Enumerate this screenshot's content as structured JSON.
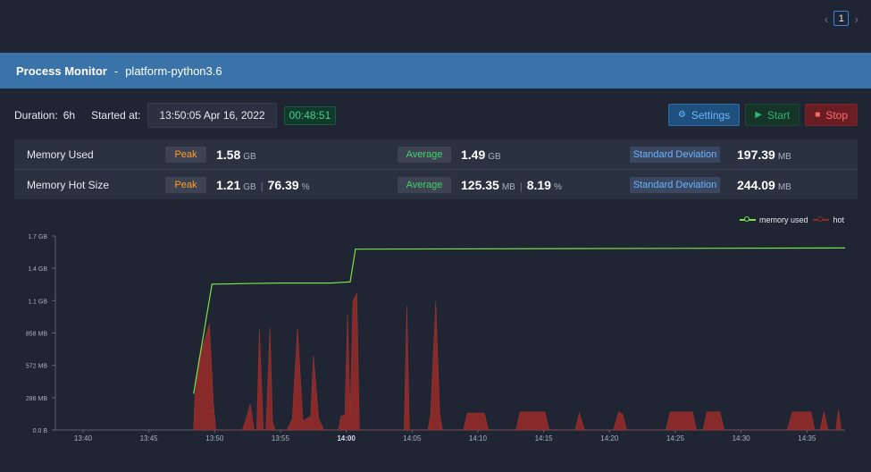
{
  "pager": {
    "prev": "‹",
    "current": "1",
    "next": "›"
  },
  "header": {
    "title": "Process Monitor",
    "separator": "-",
    "process": "platform-python3.6"
  },
  "info": {
    "duration_label": "Duration:",
    "duration_value": "6h",
    "started_label": "Started at:",
    "started_value": "13:50:05 Apr 16, 2022",
    "elapsed": "00:48:51"
  },
  "buttons": {
    "settings": "Settings",
    "start": "Start",
    "stop": "Stop"
  },
  "stats": {
    "rows": [
      {
        "name": "Memory Used",
        "peak_label": "Peak",
        "peak": "1.58",
        "peak_unit": "GB",
        "avg_label": "Average",
        "avg": "1.49",
        "avg_unit": "GB",
        "std_label": "Standard Deviation",
        "std": "197.39",
        "std_unit": "MB"
      },
      {
        "name": "Memory Hot Size",
        "peak_label": "Peak",
        "peak": "1.21",
        "peak_unit": "GB",
        "peak_pct": "76.39",
        "pct_unit": "%",
        "avg_label": "Average",
        "avg": "125.35",
        "avg_unit": "MB",
        "avg_pct": "8.19",
        "avg_pct_unit": "%",
        "std_label": "Standard Deviation",
        "std": "244.09",
        "std_unit": "MB"
      }
    ]
  },
  "colors": {
    "memory_used": "#7ce24a",
    "hot": "#8e2a2a",
    "accent": "#3a73a8"
  },
  "chart_data": {
    "type": "line",
    "legend": [
      "memory used",
      "hot"
    ],
    "legend_position": "top-right",
    "y_ticks": [
      "0.0 B",
      "286 MB",
      "572 MB",
      "858 MB",
      "1.1 GB",
      "1.4 GB",
      "1.7 GB"
    ],
    "y_range_mb": [
      0,
      1716
    ],
    "x_ticks": [
      "13:40",
      "13:45",
      "13:50",
      "13:55",
      "14:00",
      "14:05",
      "14:10",
      "14:15",
      "14:20",
      "14:25",
      "14:30",
      "14:35"
    ],
    "x_bold_tick": "14:00",
    "x_range_min": [
      0,
      60
    ],
    "grid": false,
    "series": [
      {
        "name": "memory used",
        "points_min_mb": [
          [
            10.5,
            320
          ],
          [
            11.9,
            1290
          ],
          [
            14.5,
            1295
          ],
          [
            17,
            1300
          ],
          [
            21,
            1300
          ],
          [
            22.4,
            1310
          ],
          [
            22.8,
            1600
          ],
          [
            60,
            1610
          ]
        ]
      },
      {
        "name": "hot",
        "points_min_mb": [
          [
            10.5,
            0
          ],
          [
            10.6,
            300
          ],
          [
            10.9,
            630
          ],
          [
            11.3,
            780
          ],
          [
            11.7,
            940
          ],
          [
            12,
            240
          ],
          [
            12.2,
            0
          ],
          [
            14.2,
            0
          ],
          [
            14.5,
            100
          ],
          [
            14.8,
            230
          ],
          [
            15.1,
            0
          ],
          [
            15.3,
            0
          ],
          [
            15.5,
            890
          ],
          [
            15.8,
            0
          ],
          [
            16,
            0
          ],
          [
            16.3,
            910
          ],
          [
            16.5,
            70
          ],
          [
            16.7,
            0
          ],
          [
            17.6,
            0
          ],
          [
            18,
            100
          ],
          [
            18.4,
            900
          ],
          [
            18.8,
            80
          ],
          [
            19.4,
            120
          ],
          [
            19.6,
            660
          ],
          [
            20,
            100
          ],
          [
            20.4,
            0
          ],
          [
            21.5,
            0
          ],
          [
            21.7,
            120
          ],
          [
            22,
            130
          ],
          [
            22.2,
            1020
          ],
          [
            22.4,
            130
          ],
          [
            22.6,
            1140
          ],
          [
            22.9,
            1210
          ],
          [
            23.1,
            0
          ],
          [
            26.5,
            0
          ],
          [
            26.7,
            1100
          ],
          [
            26.9,
            0
          ],
          [
            28.3,
            0
          ],
          [
            28.5,
            130
          ],
          [
            28.9,
            1140
          ],
          [
            29.2,
            150
          ],
          [
            29.4,
            0
          ],
          [
            31,
            0
          ],
          [
            31.3,
            150
          ],
          [
            32.6,
            150
          ],
          [
            32.9,
            0
          ],
          [
            35,
            0
          ],
          [
            35.3,
            160
          ],
          [
            37.2,
            160
          ],
          [
            37.5,
            0
          ],
          [
            39.5,
            0
          ],
          [
            39.8,
            150
          ],
          [
            40.2,
            0
          ],
          [
            42.4,
            0
          ],
          [
            42.8,
            160
          ],
          [
            43.1,
            140
          ],
          [
            43.4,
            0
          ],
          [
            46.4,
            0
          ],
          [
            46.7,
            160
          ],
          [
            48.4,
            160
          ],
          [
            48.7,
            0
          ],
          [
            49.2,
            0
          ],
          [
            49.5,
            160
          ],
          [
            50.5,
            160
          ],
          [
            50.8,
            0
          ],
          [
            55.6,
            0
          ],
          [
            56,
            160
          ],
          [
            57.4,
            160
          ],
          [
            57.7,
            0
          ],
          [
            58.1,
            0
          ],
          [
            58.4,
            160
          ],
          [
            58.7,
            0
          ],
          [
            59.3,
            0
          ],
          [
            59.5,
            180
          ],
          [
            59.7,
            0
          ]
        ]
      }
    ]
  }
}
